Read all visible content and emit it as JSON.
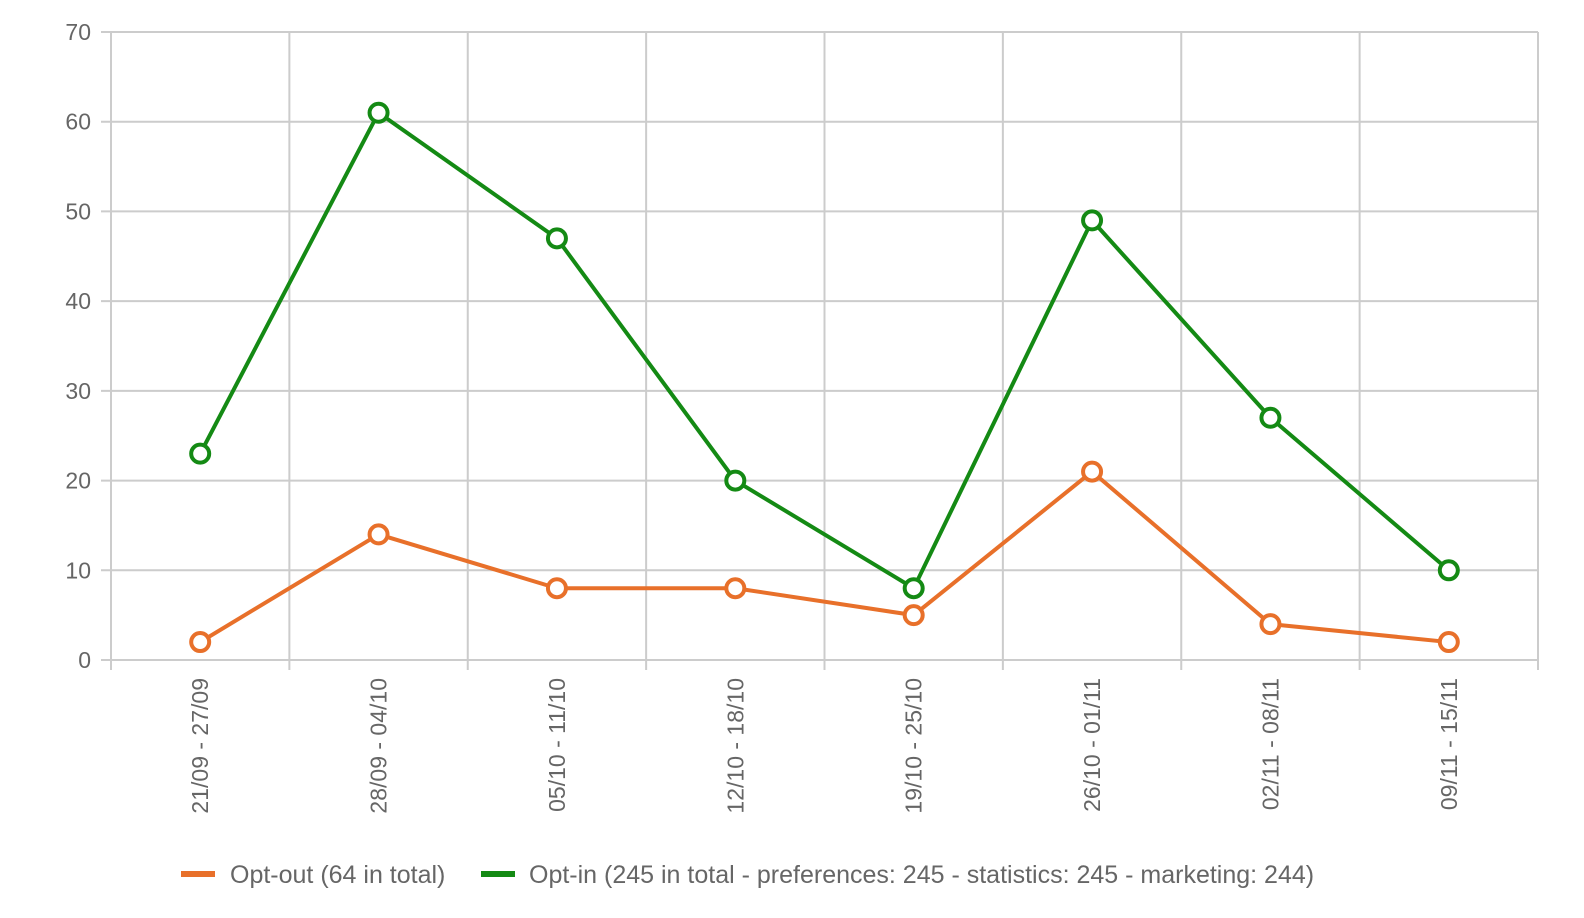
{
  "chart_data": {
    "type": "line",
    "categories": [
      "21/09 - 27/09",
      "28/09 - 04/10",
      "05/10 - 11/10",
      "12/10 - 18/10",
      "19/10 - 25/10",
      "26/10 - 01/11",
      "02/11 - 08/11",
      "09/11 - 15/11"
    ],
    "series": [
      {
        "name": "Opt-out (64 in total)",
        "color": "#e8702a",
        "values": [
          2,
          14,
          8,
          8,
          5,
          21,
          4,
          2
        ]
      },
      {
        "name": "Opt-in (245 in total - preferences: 245 - statistics: 245 - marketing: 244)",
        "color": "#148a14",
        "values": [
          23,
          61,
          47,
          20,
          8,
          49,
          27,
          10
        ]
      }
    ],
    "ylim": [
      0,
      70
    ],
    "yticks": [
      0,
      10,
      20,
      30,
      40,
      50,
      60,
      70
    ],
    "grid": true,
    "legend": "bottom-center",
    "gridColor": "#cccccc",
    "tickColor": "#666666"
  }
}
